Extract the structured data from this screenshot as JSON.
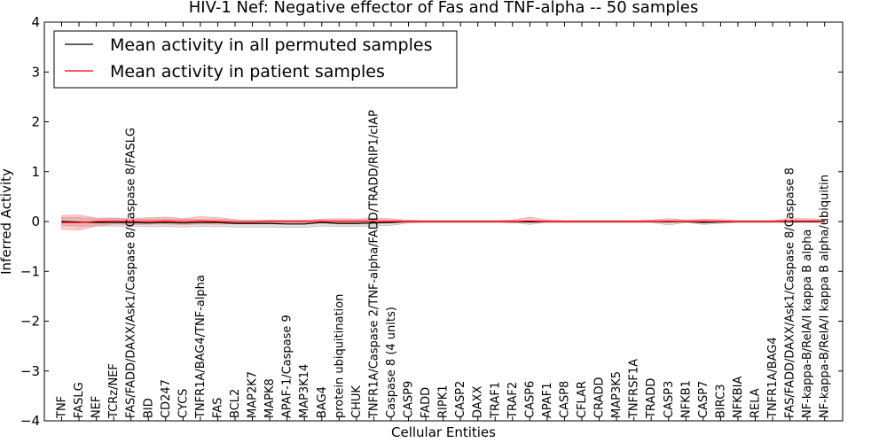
{
  "chart_data": {
    "type": "line",
    "title": "HIV-1 Nef: Negative effector of Fas and TNF-alpha -- 50 samples",
    "xlabel": "Cellular Entities",
    "ylabel": "Inferred Activity",
    "ylim": [
      -4,
      4
    ],
    "yticks": [
      4,
      3,
      2,
      1,
      0,
      -1,
      -2,
      -3,
      -4
    ],
    "ytick_labels": [
      "4",
      "3",
      "2",
      "1",
      "0",
      "−1",
      "−2",
      "−3",
      "−4"
    ],
    "grid": false,
    "legend_position": "top-left",
    "categories": [
      "TNF",
      "FASLG",
      "NEF",
      "TCRz/NEF",
      "FAS/FADD/DAXX/Ask1/Caspase 8/Caspase 8/FASLG",
      "BID",
      "CD247",
      "CYCS",
      "TNFR1A/BAG4/TNF-alpha",
      "FAS",
      "BCL2",
      "MAP2K7",
      "MAPK8",
      "APAF-1/Caspase 9",
      "MAP3K14",
      "BAG4",
      "protein ubiquitination",
      "CHUK",
      "TNFR1A/Caspase 2/TNF-alpha/FADD/TRADD/RIP1/cIAP",
      "Caspase 8 (4 units)",
      "CASP9",
      "FADD",
      "RIPK1",
      "CASP2",
      "DAXX",
      "TRAF1",
      "TRAF2",
      "CASP6",
      "APAF1",
      "CASP8",
      "CFLAR",
      "CRADD",
      "MAP3K5",
      "TNFRSF1A",
      "TRADD",
      "CASP3",
      "NFKB1",
      "CASP7",
      "BIRC3",
      "NFKBIA",
      "RELA",
      "TNFR1A/BAG4",
      "FAS/FADD/DAXX/Ask1/Caspase 8/Caspase 8",
      "NF-kappa-B/RelA/I kappa B alpha",
      "NF-kappa-B/RelA/I kappa B alpha/ubiquitin"
    ],
    "series": [
      {
        "name": "Mean activity in all permuted samples",
        "color": "#000000",
        "values": [
          0.0,
          -0.01,
          -0.02,
          -0.02,
          -0.02,
          -0.03,
          -0.02,
          -0.03,
          -0.02,
          -0.02,
          -0.04,
          -0.04,
          -0.04,
          -0.05,
          -0.05,
          -0.02,
          -0.04,
          -0.04,
          -0.03,
          -0.02,
          0.0,
          0.0,
          0.0,
          0.0,
          0.0,
          0.0,
          0.0,
          -0.01,
          0.0,
          0.0,
          0.0,
          0.0,
          0.0,
          0.0,
          0.0,
          -0.01,
          0.0,
          -0.02,
          -0.01,
          0.0,
          0.0,
          0.0,
          0.0,
          0.0,
          0.0
        ],
        "band_upper": [
          0.08,
          0.08,
          0.05,
          0.06,
          0.05,
          0.05,
          0.05,
          0.05,
          0.04,
          0.04,
          0.03,
          0.03,
          0.03,
          0.03,
          0.03,
          0.03,
          0.03,
          0.03,
          0.03,
          0.03,
          0.03,
          0.02,
          0.02,
          0.02,
          0.02,
          0.02,
          0.02,
          0.02,
          0.02,
          0.02,
          0.02,
          0.02,
          0.02,
          0.02,
          0.02,
          0.03,
          0.02,
          0.03,
          0.02,
          0.02,
          0.02,
          0.02,
          0.02,
          0.02,
          0.02
        ],
        "band_lower": [
          -0.08,
          -0.09,
          -0.09,
          -0.09,
          -0.1,
          -0.1,
          -0.1,
          -0.11,
          -0.1,
          -0.1,
          -0.11,
          -0.11,
          -0.11,
          -0.12,
          -0.12,
          -0.09,
          -0.1,
          -0.1,
          -0.09,
          -0.08,
          -0.03,
          -0.02,
          -0.02,
          -0.02,
          -0.02,
          -0.02,
          -0.02,
          -0.06,
          -0.02,
          -0.02,
          -0.02,
          -0.02,
          -0.02,
          -0.02,
          -0.02,
          -0.07,
          -0.02,
          -0.06,
          -0.04,
          -0.02,
          -0.02,
          -0.02,
          -0.02,
          -0.02,
          -0.02
        ]
      },
      {
        "name": "Mean activity in patient samples",
        "color": "#ff0000",
        "values": [
          -0.02,
          -0.02,
          0.0,
          0.01,
          0.0,
          0.0,
          0.01,
          0.0,
          0.01,
          0.0,
          -0.01,
          -0.01,
          0.0,
          0.0,
          0.0,
          0.0,
          0.0,
          0.0,
          0.0,
          0.0,
          0.0,
          0.0,
          0.0,
          0.0,
          0.0,
          0.0,
          0.0,
          0.01,
          0.0,
          0.0,
          0.0,
          0.0,
          0.0,
          0.0,
          0.0,
          0.0,
          0.0,
          0.0,
          0.0,
          0.0,
          0.0,
          0.0,
          0.01,
          0.01,
          0.01
        ],
        "band_upper": [
          0.12,
          0.13,
          0.07,
          0.07,
          0.06,
          0.08,
          0.09,
          0.06,
          0.1,
          0.08,
          0.04,
          0.02,
          0.02,
          0.02,
          0.02,
          0.05,
          0.06,
          0.05,
          0.07,
          0.06,
          0.02,
          0.02,
          0.02,
          0.02,
          0.02,
          0.02,
          0.03,
          0.09,
          0.03,
          0.02,
          0.02,
          0.02,
          0.02,
          0.02,
          0.03,
          0.06,
          0.03,
          0.05,
          0.04,
          0.02,
          0.02,
          0.02,
          0.07,
          0.06,
          0.04
        ],
        "band_lower": [
          -0.16,
          -0.17,
          -0.09,
          -0.05,
          -0.07,
          -0.06,
          -0.05,
          -0.07,
          -0.05,
          -0.06,
          -0.04,
          -0.03,
          -0.03,
          -0.03,
          -0.03,
          -0.02,
          -0.03,
          -0.03,
          -0.03,
          -0.03,
          -0.02,
          -0.02,
          -0.02,
          -0.02,
          -0.02,
          -0.02,
          -0.03,
          -0.02,
          -0.02,
          -0.02,
          -0.02,
          -0.02,
          -0.02,
          -0.02,
          -0.02,
          -0.02,
          -0.02,
          -0.02,
          -0.02,
          -0.02,
          -0.02,
          -0.02,
          -0.02,
          -0.02,
          -0.02
        ]
      }
    ]
  }
}
